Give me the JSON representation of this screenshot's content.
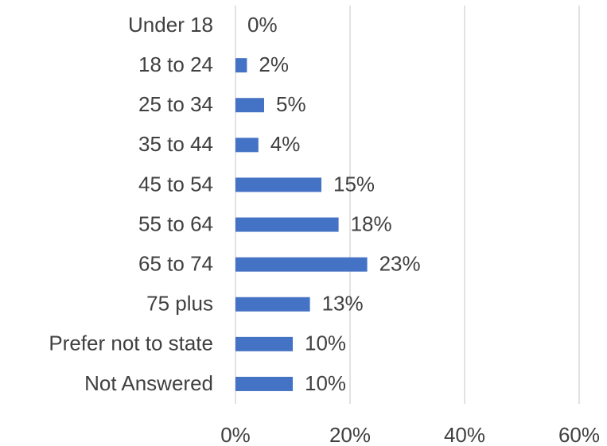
{
  "chart_data": {
    "type": "barh",
    "categories": [
      "Under 18",
      "18 to 24",
      "25 to 34",
      "35 to 44",
      "45 to 54",
      "55 to 64",
      "65 to 74",
      "75 plus",
      "Prefer not to state",
      "Not Answered"
    ],
    "values": [
      0,
      2,
      5,
      4,
      15,
      18,
      23,
      13,
      10,
      10
    ],
    "value_labels": [
      "0%",
      "2%",
      "5%",
      "4%",
      "15%",
      "18%",
      "23%",
      "13%",
      "10%",
      "10%"
    ],
    "color": "#4472c4",
    "xlim": [
      0,
      60
    ],
    "xticks": [
      {
        "value": 0,
        "label": "0%"
      },
      {
        "value": 20,
        "label": "20%"
      },
      {
        "value": 40,
        "label": "40%"
      },
      {
        "value": 60,
        "label": "60%"
      }
    ],
    "grid": true
  }
}
